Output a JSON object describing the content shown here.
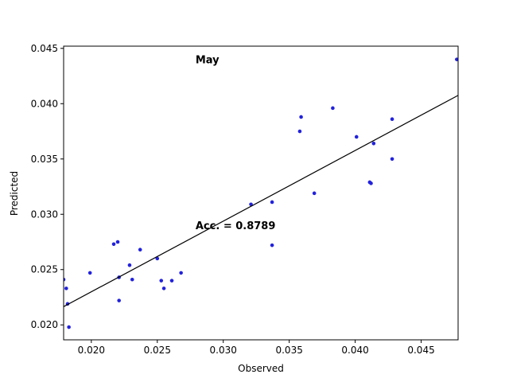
{
  "chart_data": {
    "type": "scatter",
    "title": "",
    "xlabel": "Observed",
    "ylabel": "Predicted",
    "xlim": [
      0.0179,
      0.0478
    ],
    "ylim": [
      0.01865,
      0.0452
    ],
    "xticks": [
      0.02,
      0.025,
      0.03,
      0.035,
      0.04,
      0.045
    ],
    "xtick_labels": [
      "0.020",
      "0.025",
      "0.030",
      "0.035",
      "0.040",
      "0.045"
    ],
    "yticks": [
      0.02,
      0.025,
      0.03,
      0.035,
      0.04,
      0.045
    ],
    "ytick_labels": [
      "0.020",
      "0.025",
      "0.030",
      "0.035",
      "0.040",
      "0.045"
    ],
    "grid": false,
    "point_color": "#2222dd",
    "line_color": "#000000",
    "annotations": [
      {
        "text": "May",
        "x": 0.0279,
        "y": 0.044
      },
      {
        "text": "Acc. = 0.8789",
        "x": 0.0279,
        "y": 0.029
      }
    ],
    "fit_line": {
      "x": [
        0.0179,
        0.0478
      ],
      "y": [
        0.02165,
        0.04075
      ]
    },
    "points": [
      {
        "x": 0.0179,
        "y": 0.0241
      },
      {
        "x": 0.0181,
        "y": 0.0233
      },
      {
        "x": 0.0182,
        "y": 0.0219
      },
      {
        "x": 0.0183,
        "y": 0.0198
      },
      {
        "x": 0.0199,
        "y": 0.0247
      },
      {
        "x": 0.0217,
        "y": 0.0273
      },
      {
        "x": 0.022,
        "y": 0.0275
      },
      {
        "x": 0.0221,
        "y": 0.0243
      },
      {
        "x": 0.0221,
        "y": 0.0222
      },
      {
        "x": 0.0229,
        "y": 0.0254
      },
      {
        "x": 0.0231,
        "y": 0.0241
      },
      {
        "x": 0.0237,
        "y": 0.0268
      },
      {
        "x": 0.025,
        "y": 0.026
      },
      {
        "x": 0.0253,
        "y": 0.024
      },
      {
        "x": 0.0255,
        "y": 0.0233
      },
      {
        "x": 0.0261,
        "y": 0.024
      },
      {
        "x": 0.0268,
        "y": 0.0247
      },
      {
        "x": 0.0321,
        "y": 0.0309
      },
      {
        "x": 0.0337,
        "y": 0.0311
      },
      {
        "x": 0.0337,
        "y": 0.0272
      },
      {
        "x": 0.0358,
        "y": 0.0375
      },
      {
        "x": 0.0359,
        "y": 0.0388
      },
      {
        "x": 0.0369,
        "y": 0.0319
      },
      {
        "x": 0.0383,
        "y": 0.0396
      },
      {
        "x": 0.0401,
        "y": 0.037
      },
      {
        "x": 0.0411,
        "y": 0.0329
      },
      {
        "x": 0.0412,
        "y": 0.0328
      },
      {
        "x": 0.0414,
        "y": 0.0364
      },
      {
        "x": 0.0428,
        "y": 0.0386
      },
      {
        "x": 0.0428,
        "y": 0.035
      },
      {
        "x": 0.0477,
        "y": 0.044
      }
    ]
  }
}
